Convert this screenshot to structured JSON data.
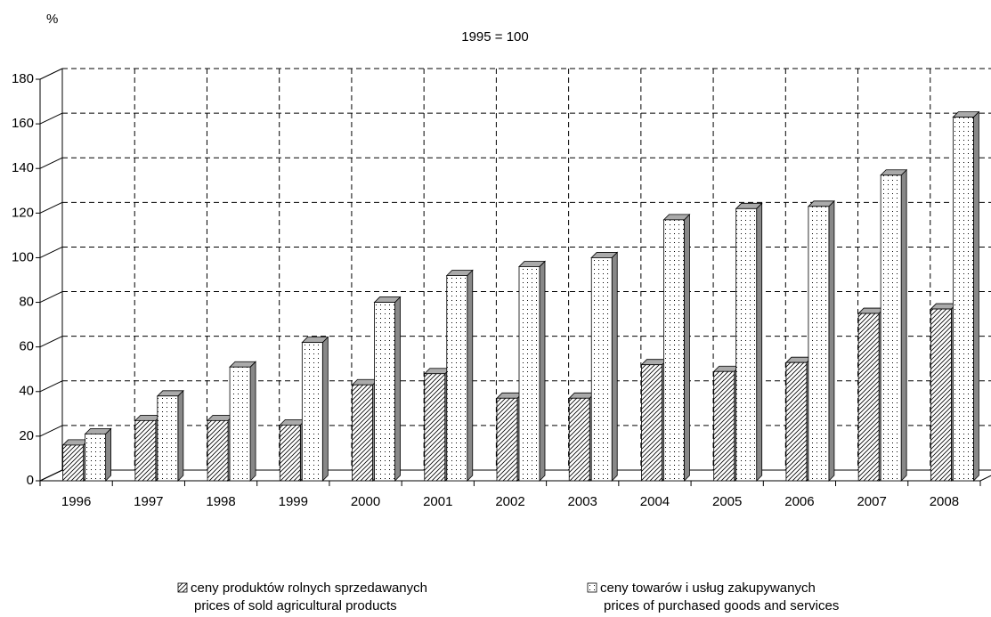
{
  "chart_data": {
    "type": "bar3d",
    "unit": "%",
    "subtitle": "1995 = 100",
    "categories": [
      "1996",
      "1997",
      "1998",
      "1999",
      "2000",
      "2001",
      "2002",
      "2003",
      "2004",
      "2005",
      "2006",
      "2007",
      "2008"
    ],
    "series": [
      {
        "name": "ceny produktów rolnych sprzedawanych",
        "name_en": "prices of sold agricultural products",
        "color": "#ffffff",
        "pattern": "hatch",
        "values": [
          16,
          27,
          27,
          25,
          43,
          48,
          37,
          37,
          52,
          49,
          53,
          75,
          77
        ]
      },
      {
        "name": "ceny towarów i usług zakupywanych",
        "name_en": "prices of purchased goods and services",
        "color": "#ffffff",
        "pattern": "dots",
        "values": [
          21,
          38,
          51,
          62,
          80,
          92,
          96,
          100,
          117,
          122,
          123,
          137,
          163
        ]
      }
    ],
    "ylim": [
      0,
      180
    ],
    "yticks": [
      0,
      20,
      40,
      60,
      80,
      100,
      120,
      140,
      160,
      180
    ],
    "grid": true
  }
}
